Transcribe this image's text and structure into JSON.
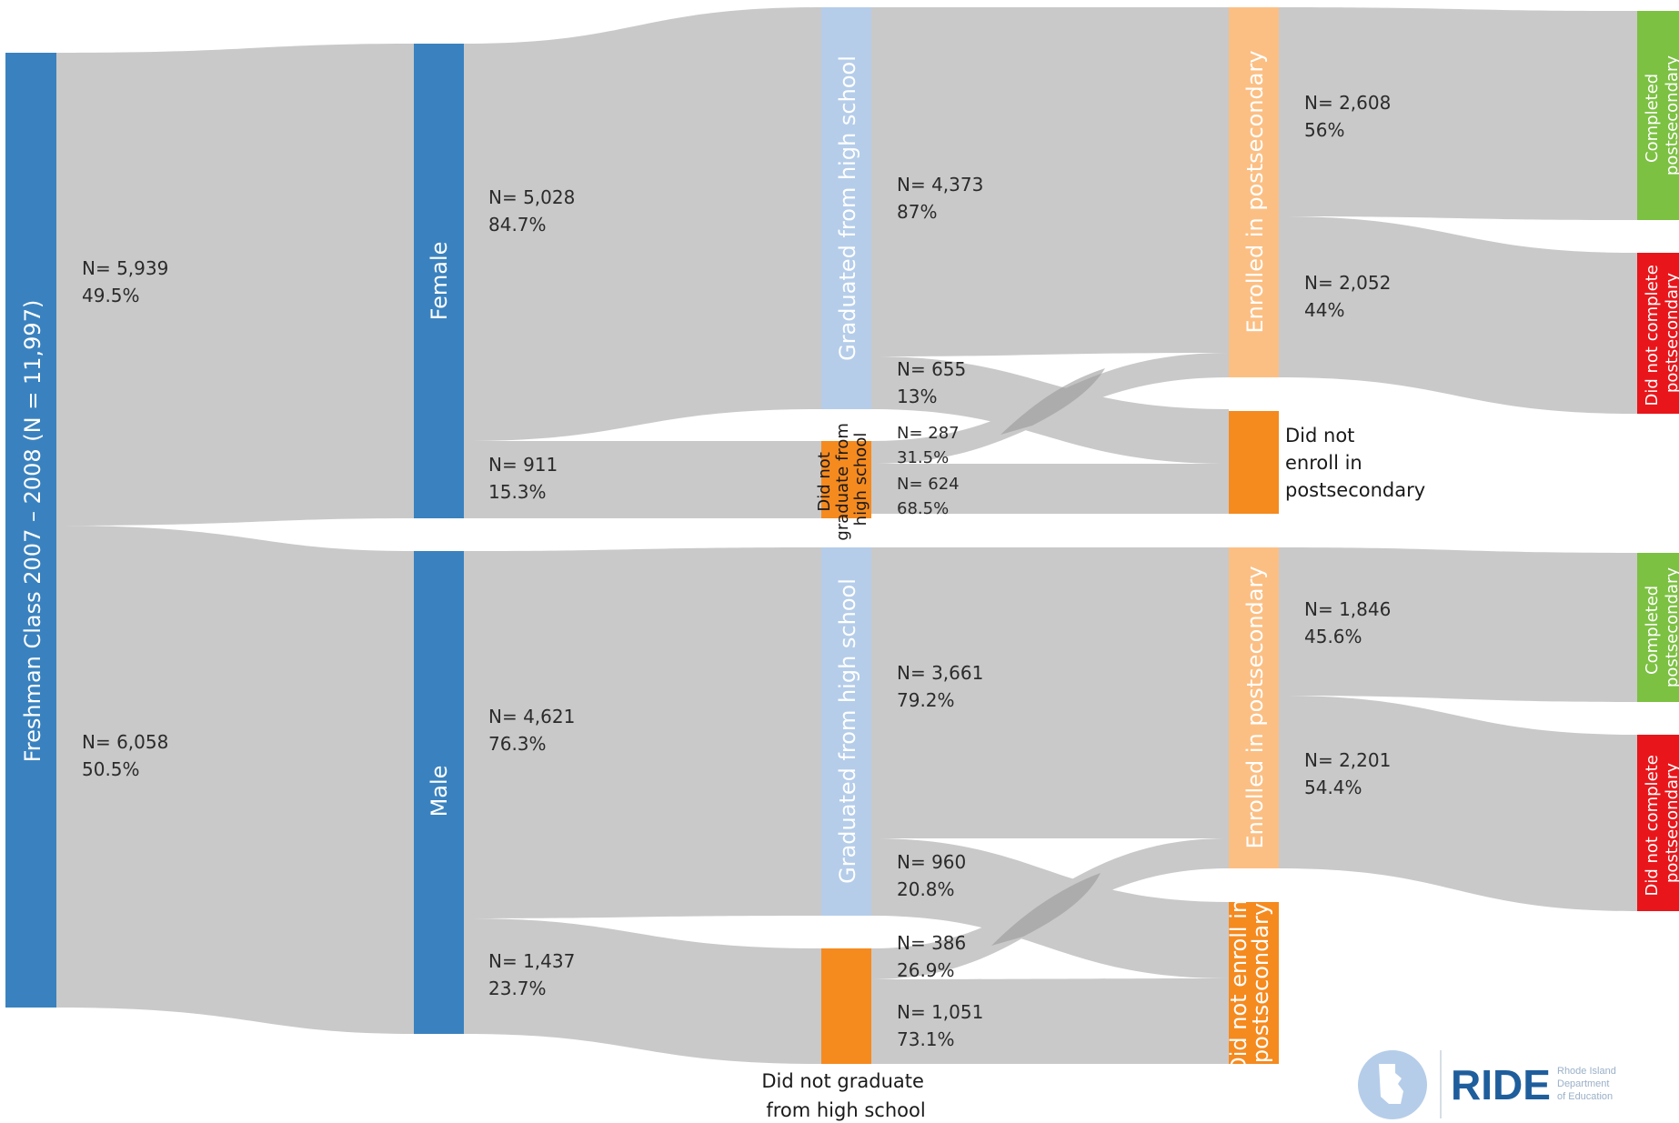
{
  "colors": {
    "flow": "#c9c9c9",
    "flow_overlap": "#9a9a9a",
    "blue": "#3a82bf",
    "light_blue": "#b5cde9",
    "orange": "#f58a1f",
    "light_orange": "#fbbf84",
    "green": "#7cc142",
    "red": "#e8161b",
    "logo_blue": "#1f5e9c"
  },
  "nodes": {
    "root": "Freshman Class 2007 – 2008 (N = 11,997)",
    "female": "Female",
    "male": "Male",
    "f_grad": "Graduated from high school",
    "f_nograd_lines": [
      "Did not",
      "graduate from",
      "high school"
    ],
    "f_enrolled": "Enrolled in postsecondary",
    "f_not_enrolled_lines": [
      "Did not",
      "enroll in",
      "postsecondary"
    ],
    "f_completed_lines": [
      "Completed",
      "postsecondary"
    ],
    "f_not_completed_lines": [
      "Did not complete",
      "postsecondary"
    ],
    "m_grad": "Graduated from high school",
    "m_nograd_lines": [
      "Did not graduate",
      "from high school"
    ],
    "m_enrolled": "Enrolled in postsecondary",
    "m_not_enrolled_lines": [
      "Did not enroll in",
      "postsecondary"
    ],
    "m_completed_lines": [
      "Completed",
      "postsecondary"
    ],
    "m_not_completed_lines": [
      "Did not complete",
      "postsecondary"
    ]
  },
  "flow_labels": {
    "root_female": {
      "n": "N= 5,939",
      "pct": "49.5%"
    },
    "root_male": {
      "n": "N= 6,058",
      "pct": "50.5%"
    },
    "female_grad": {
      "n": "N= 5,028",
      "pct": "84.7%"
    },
    "female_nograd": {
      "n": "N= 911",
      "pct": "15.3%"
    },
    "male_grad": {
      "n": "N= 4,621",
      "pct": "76.3%"
    },
    "male_nograd": {
      "n": "N= 1,437",
      "pct": "23.7%"
    },
    "fgrad_enrolled": {
      "n": "N= 4,373",
      "pct": "87%"
    },
    "fgrad_notenrolled": {
      "n": "N= 655",
      "pct": "13%"
    },
    "fnograd_enrolled": {
      "n": "N= 287",
      "pct": "31.5%"
    },
    "fnograd_notenrolled": {
      "n": "N= 624",
      "pct": "68.5%"
    },
    "mgrad_enrolled": {
      "n": "N= 3,661",
      "pct": "79.2%"
    },
    "mgrad_notenrolled": {
      "n": "N= 960",
      "pct": "20.8%"
    },
    "mnograd_enrolled": {
      "n": "N= 386",
      "pct": "26.9%"
    },
    "mnograd_notenrolled": {
      "n": "N= 1,051",
      "pct": "73.1%"
    },
    "fenr_completed": {
      "n": "N= 2,608",
      "pct": "56%"
    },
    "fenr_notcompleted": {
      "n": "N= 2,052",
      "pct": "44%"
    },
    "menr_completed": {
      "n": "N= 1,846",
      "pct": "45.6%"
    },
    "menr_notcompleted": {
      "n": "N= 2,201",
      "pct": "54.4%"
    }
  },
  "logo": {
    "word": "RIDE",
    "sub_lines": [
      "Rhode Island",
      "Department",
      "of Education"
    ]
  }
}
